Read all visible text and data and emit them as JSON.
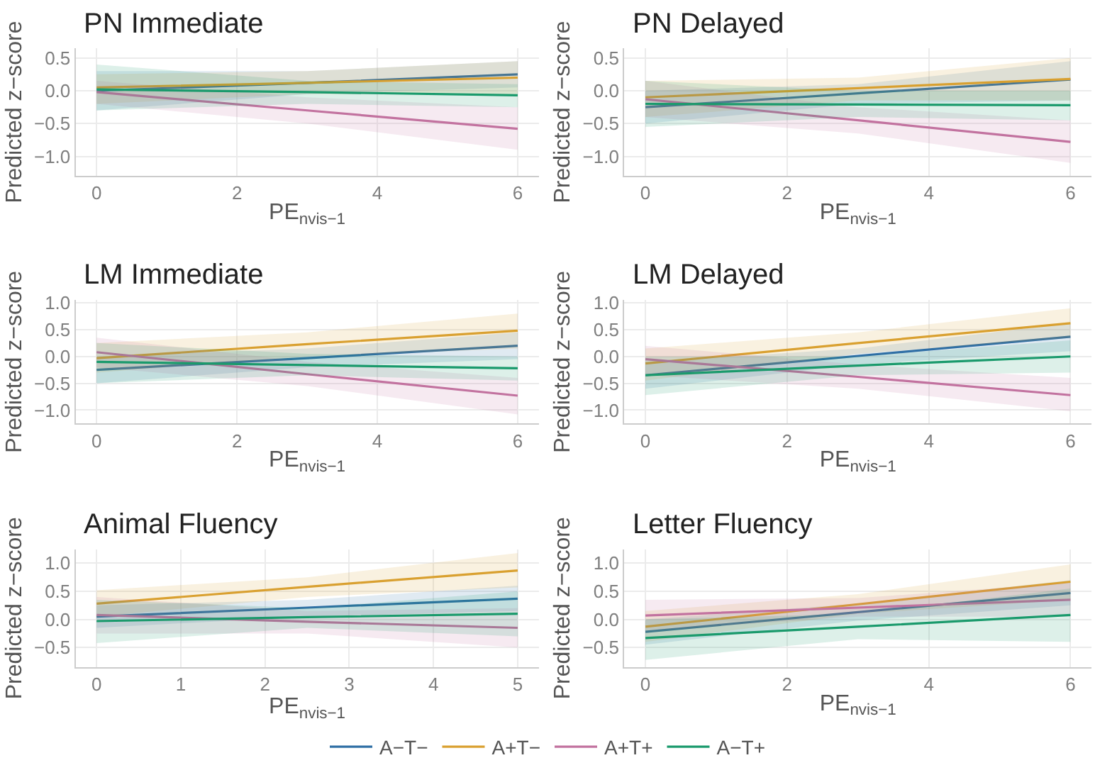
{
  "chart_data": [
    {
      "type": "line",
      "title": "PN Immediate",
      "xlabel": "PE$_{nvis−1}$",
      "ylabel": "Predicted z−score",
      "x": [
        0,
        3,
        6
      ],
      "xlim": [
        -0.3,
        6.3
      ],
      "xticks": [
        0,
        2,
        4,
        6
      ],
      "ylim": [
        -1.3,
        0.65
      ],
      "yticks": [
        {
          "value": -1,
          "label": "−1.0"
        },
        {
          "value": -0.5,
          "label": "−0.5"
        },
        {
          "value": 0,
          "label": "0.0"
        },
        {
          "value": 0.5,
          "label": "0.5"
        }
      ],
      "grid": true,
      "legend": "bottom",
      "series": [
        {
          "name": "A−T−",
          "color": "#2f6fa5",
          "values": [
            0.0,
            0.12,
            0.25
          ],
          "lower": [
            -0.3,
            -0.05,
            0.05
          ],
          "upper": [
            0.3,
            0.3,
            0.45
          ]
        },
        {
          "name": "A+T−",
          "color": "#d9a030",
          "values": [
            0.05,
            0.12,
            0.2
          ],
          "lower": [
            -0.2,
            -0.05,
            -0.05
          ],
          "upper": [
            0.25,
            0.3,
            0.45
          ]
        },
        {
          "name": "A+T+",
          "color": "#c2729f",
          "values": [
            -0.02,
            -0.3,
            -0.58
          ],
          "lower": [
            -0.2,
            -0.5,
            -0.9
          ],
          "upper": [
            0.15,
            -0.1,
            -0.25
          ]
        },
        {
          "name": "A−T+",
          "color": "#1a9a6c",
          "values": [
            0.02,
            -0.02,
            -0.07
          ],
          "lower": [
            -0.3,
            -0.2,
            -0.25
          ],
          "upper": [
            0.4,
            0.15,
            0.1
          ]
        }
      ]
    },
    {
      "type": "line",
      "title": "PN Delayed",
      "xlabel": "PE$_{nvis−1}$",
      "ylabel": "Predicted z−score",
      "x": [
        0,
        3,
        6
      ],
      "xlim": [
        -0.3,
        6.3
      ],
      "xticks": [
        0,
        2,
        4,
        6
      ],
      "ylim": [
        -1.3,
        0.65
      ],
      "yticks": [
        {
          "value": -1,
          "label": "−1.0"
        },
        {
          "value": -0.5,
          "label": "−0.5"
        },
        {
          "value": 0,
          "label": "0.0"
        },
        {
          "value": 0.5,
          "label": "0.5"
        }
      ],
      "grid": true,
      "legend": "bottom",
      "series": [
        {
          "name": "A−T−",
          "color": "#2f6fa5",
          "values": [
            -0.25,
            -0.04,
            0.17
          ],
          "lower": [
            -0.5,
            -0.2,
            -0.15
          ],
          "upper": [
            0.0,
            0.1,
            0.45
          ]
        },
        {
          "name": "A+T−",
          "color": "#d9a030",
          "values": [
            -0.1,
            0.04,
            0.18
          ],
          "lower": [
            -0.4,
            -0.15,
            -0.15
          ],
          "upper": [
            0.15,
            0.2,
            0.5
          ]
        },
        {
          "name": "A+T+",
          "color": "#c2729f",
          "values": [
            -0.13,
            -0.45,
            -0.78
          ],
          "lower": [
            -0.4,
            -0.65,
            -1.1
          ],
          "upper": [
            0.15,
            -0.25,
            -0.45
          ]
        },
        {
          "name": "A−T+",
          "color": "#1a9a6c",
          "values": [
            -0.2,
            -0.21,
            -0.22
          ],
          "lower": [
            -0.55,
            -0.4,
            -0.45
          ],
          "upper": [
            0.15,
            0.0,
            0.0
          ]
        }
      ]
    },
    {
      "type": "line",
      "title": "LM Immediate",
      "xlabel": "PE$_{nvis−1}$",
      "ylabel": "Predicted z−score",
      "x": [
        0,
        3,
        6
      ],
      "xlim": [
        -0.3,
        6.3
      ],
      "xticks": [
        0,
        2,
        4,
        6
      ],
      "ylim": [
        -1.25,
        1.05
      ],
      "yticks": [
        {
          "value": -1,
          "label": "−1.0"
        },
        {
          "value": -0.5,
          "label": "−0.5"
        },
        {
          "value": 0,
          "label": "0.0"
        },
        {
          "value": 0.5,
          "label": "0.5"
        },
        {
          "value": 1,
          "label": "1.0"
        }
      ],
      "grid": true,
      "legend": "bottom",
      "series": [
        {
          "name": "A−T−",
          "color": "#2f6fa5",
          "values": [
            -0.25,
            -0.03,
            0.2
          ],
          "lower": [
            -0.5,
            -0.2,
            -0.05
          ],
          "upper": [
            0.0,
            0.15,
            0.45
          ]
        },
        {
          "name": "A+T−",
          "color": "#d9a030",
          "values": [
            -0.03,
            0.23,
            0.48
          ],
          "lower": [
            -0.3,
            0.0,
            0.15
          ],
          "upper": [
            0.25,
            0.45,
            0.8
          ]
        },
        {
          "name": "A+T+",
          "color": "#c2729f",
          "values": [
            0.08,
            -0.33,
            -0.73
          ],
          "lower": [
            -0.2,
            -0.55,
            -1.08
          ],
          "upper": [
            0.35,
            -0.1,
            -0.4
          ]
        },
        {
          "name": "A−T+",
          "color": "#1a9a6c",
          "values": [
            -0.1,
            -0.16,
            -0.22
          ],
          "lower": [
            -0.5,
            -0.35,
            -0.45
          ],
          "upper": [
            0.25,
            0.05,
            0.0
          ]
        }
      ]
    },
    {
      "type": "line",
      "title": "LM Delayed",
      "xlabel": "PE$_{nvis−1}$",
      "ylabel": "Predicted z−score",
      "x": [
        0,
        3,
        6
      ],
      "xlim": [
        -0.3,
        6.3
      ],
      "xticks": [
        0,
        2,
        4,
        6
      ],
      "ylim": [
        -1.25,
        1.05
      ],
      "yticks": [
        {
          "value": -1,
          "label": "−1.0"
        },
        {
          "value": -0.5,
          "label": "−0.5"
        },
        {
          "value": 0,
          "label": "0.0"
        },
        {
          "value": 0.5,
          "label": "0.5"
        },
        {
          "value": 1,
          "label": "1.0"
        }
      ],
      "grid": true,
      "legend": "bottom",
      "series": [
        {
          "name": "A−T−",
          "color": "#2f6fa5",
          "values": [
            -0.35,
            0.01,
            0.37
          ],
          "lower": [
            -0.6,
            -0.15,
            0.1
          ],
          "upper": [
            -0.1,
            0.15,
            0.62
          ]
        },
        {
          "name": "A+T−",
          "color": "#d9a030",
          "values": [
            -0.13,
            0.25,
            0.62
          ],
          "lower": [
            -0.45,
            0.05,
            0.35
          ],
          "upper": [
            0.15,
            0.45,
            0.9
          ]
        },
        {
          "name": "A+T+",
          "color": "#c2729f",
          "values": [
            -0.05,
            -0.38,
            -0.72
          ],
          "lower": [
            -0.35,
            -0.6,
            -1.02
          ],
          "upper": [
            0.2,
            -0.15,
            -0.4
          ]
        },
        {
          "name": "A−T+",
          "color": "#1a9a6c",
          "values": [
            -0.35,
            -0.17,
            0.0
          ],
          "lower": [
            -0.72,
            -0.35,
            -0.3
          ],
          "upper": [
            0.0,
            0.0,
            0.3
          ]
        }
      ]
    },
    {
      "type": "line",
      "title": "Animal Fluency",
      "xlabel": "PE$_{nvis−1}$",
      "ylabel": "Predicted z−score",
      "x": [
        0,
        2.5,
        5
      ],
      "xlim": [
        -0.25,
        5.25
      ],
      "xticks": [
        0,
        1,
        2,
        3,
        4,
        5
      ],
      "ylim": [
        -0.85,
        1.25
      ],
      "yticks": [
        {
          "value": -0.5,
          "label": "−0.5"
        },
        {
          "value": 0,
          "label": "0.0"
        },
        {
          "value": 0.5,
          "label": "0.5"
        },
        {
          "value": 1,
          "label": "1.0"
        }
      ],
      "grid": true,
      "legend": "bottom",
      "series": [
        {
          "name": "A−T−",
          "color": "#2f6fa5",
          "values": [
            0.05,
            0.21,
            0.37
          ],
          "lower": [
            -0.15,
            0.05,
            0.15
          ],
          "upper": [
            0.25,
            0.35,
            0.6
          ]
        },
        {
          "name": "A+T−",
          "color": "#d9a030",
          "values": [
            0.28,
            0.58,
            0.87
          ],
          "lower": [
            0.05,
            0.4,
            0.57
          ],
          "upper": [
            0.52,
            0.75,
            1.18
          ]
        },
        {
          "name": "A+T+",
          "color": "#c2729f",
          "values": [
            0.08,
            -0.04,
            -0.15
          ],
          "lower": [
            -0.25,
            -0.25,
            -0.5
          ],
          "upper": [
            0.4,
            0.15,
            0.2
          ]
        },
        {
          "name": "A−T+",
          "color": "#1a9a6c",
          "values": [
            -0.03,
            0.04,
            0.1
          ],
          "lower": [
            -0.42,
            -0.15,
            -0.3
          ],
          "upper": [
            0.35,
            0.2,
            0.5
          ]
        }
      ]
    },
    {
      "type": "line",
      "title": "Letter Fluency",
      "xlabel": "PE$_{nvis−1}$",
      "ylabel": "Predicted z−score",
      "x": [
        0,
        3,
        6
      ],
      "xlim": [
        -0.3,
        6.3
      ],
      "xticks": [
        0,
        2,
        4,
        6
      ],
      "ylim": [
        -0.85,
        1.25
      ],
      "yticks": [
        {
          "value": -0.5,
          "label": "−0.5"
        },
        {
          "value": 0,
          "label": "0.0"
        },
        {
          "value": 0.5,
          "label": "0.5"
        },
        {
          "value": 1,
          "label": "1.0"
        }
      ],
      "grid": true,
      "legend": "bottom",
      "series": [
        {
          "name": "A−T−",
          "color": "#2f6fa5",
          "values": [
            -0.22,
            0.13,
            0.47
          ],
          "lower": [
            -0.45,
            -0.02,
            0.25
          ],
          "upper": [
            0.0,
            0.28,
            0.7
          ]
        },
        {
          "name": "A+T−",
          "color": "#d9a030",
          "values": [
            -0.13,
            0.27,
            0.67
          ],
          "lower": [
            -0.4,
            0.1,
            0.35
          ],
          "upper": [
            0.15,
            0.45,
            0.98
          ]
        },
        {
          "name": "A+T+",
          "color": "#c2729f",
          "values": [
            0.07,
            0.21,
            0.35
          ],
          "lower": [
            -0.2,
            0.05,
            0.05
          ],
          "upper": [
            0.35,
            0.38,
            0.65
          ]
        },
        {
          "name": "A−T+",
          "color": "#1a9a6c",
          "values": [
            -0.33,
            -0.13,
            0.08
          ],
          "lower": [
            -0.72,
            -0.35,
            -0.4
          ],
          "upper": [
            0.0,
            0.1,
            0.55
          ]
        }
      ]
    }
  ]
}
